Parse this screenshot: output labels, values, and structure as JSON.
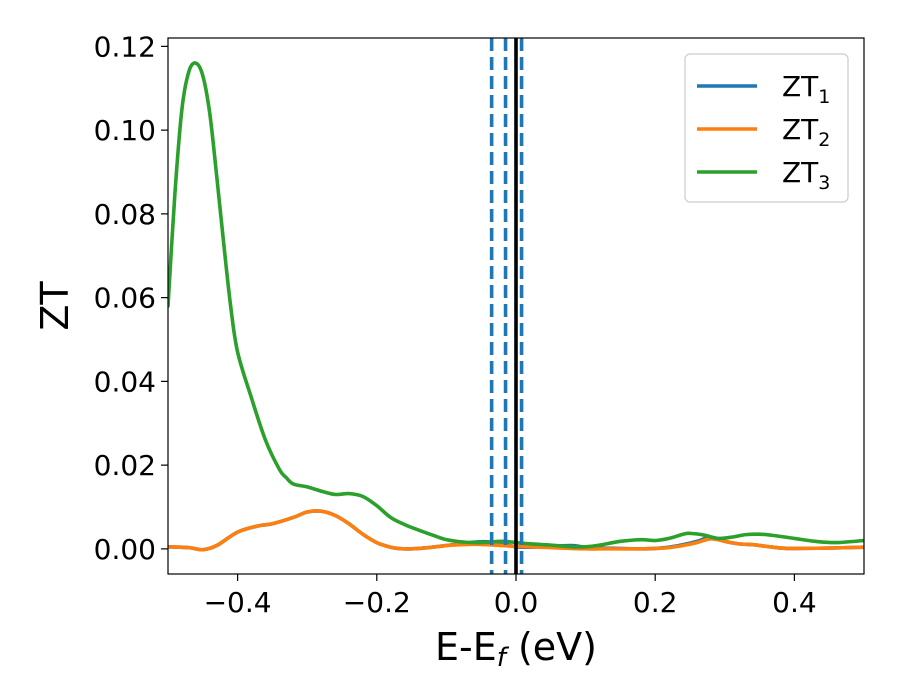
{
  "chart_data": {
    "type": "line",
    "xlabel": {
      "main": "E-E",
      "sub": "f",
      "suffix": " (eV)"
    },
    "ylabel": "ZT",
    "xlim": [
      -0.5,
      0.5
    ],
    "ylim": [
      -0.006,
      0.122
    ],
    "xticks": [
      -0.4,
      -0.2,
      0.0,
      0.2,
      0.4
    ],
    "xtick_labels": [
      "−0.4",
      "−0.2",
      "0.0",
      "0.2",
      "0.4"
    ],
    "yticks": [
      0.0,
      0.02,
      0.04,
      0.06,
      0.08,
      0.1,
      0.12
    ],
    "ytick_labels": [
      "0.00",
      "0.02",
      "0.04",
      "0.06",
      "0.08",
      "0.10",
      "0.12"
    ],
    "grid": false,
    "legend_position": "top-right",
    "reference_lines": {
      "solid_black_x": 0.0,
      "dashed_blue_x": [
        -0.035,
        -0.015,
        0.008
      ],
      "colors": {
        "solid": "#000000",
        "dashed": "#1f77b4"
      }
    },
    "series": [
      {
        "name": "ZT",
        "name_sub": "1",
        "color": "#1f77b4",
        "x": [
          -0.5,
          -0.47,
          -0.45,
          -0.43,
          -0.4,
          -0.37,
          -0.35,
          -0.32,
          -0.3,
          -0.28,
          -0.26,
          -0.24,
          -0.22,
          -0.2,
          -0.18,
          -0.16,
          -0.14,
          -0.12,
          -0.1,
          -0.08,
          -0.06,
          -0.04,
          -0.02,
          0.0,
          0.02,
          0.05,
          0.08,
          0.1,
          0.12,
          0.15,
          0.18,
          0.2,
          0.22,
          0.24,
          0.26,
          0.28,
          0.3,
          0.32,
          0.34,
          0.36,
          0.38,
          0.4,
          0.45,
          0.5
        ],
        "y": [
          0.0005,
          0.0003,
          -0.0002,
          0.0008,
          0.004,
          0.0055,
          0.006,
          0.0075,
          0.0088,
          0.009,
          0.008,
          0.006,
          0.0035,
          0.0015,
          0.0004,
          0.0,
          0.0001,
          0.0004,
          0.0008,
          0.0012,
          0.0016,
          0.0017,
          0.0012,
          0.0005,
          0.0004,
          0.0006,
          0.0008,
          0.0004,
          0.0002,
          0.0001,
          0.0,
          0.0001,
          0.0004,
          0.001,
          0.0018,
          0.0028,
          0.0018,
          0.0012,
          0.001,
          0.0006,
          0.0002,
          0.0001,
          0.0002,
          0.0004
        ]
      },
      {
        "name": "ZT",
        "name_sub": "2",
        "color": "#ff7f0e",
        "x": [
          -0.5,
          -0.47,
          -0.45,
          -0.43,
          -0.4,
          -0.37,
          -0.35,
          -0.32,
          -0.3,
          -0.28,
          -0.26,
          -0.24,
          -0.22,
          -0.2,
          -0.18,
          -0.16,
          -0.14,
          -0.12,
          -0.1,
          -0.08,
          -0.06,
          -0.04,
          -0.02,
          0.0,
          0.02,
          0.05,
          0.08,
          0.1,
          0.12,
          0.15,
          0.18,
          0.2,
          0.22,
          0.24,
          0.26,
          0.28,
          0.3,
          0.32,
          0.34,
          0.36,
          0.38,
          0.4,
          0.45,
          0.5
        ],
        "y": [
          0.0005,
          0.0003,
          -0.0002,
          0.0008,
          0.004,
          0.0055,
          0.006,
          0.0075,
          0.0088,
          0.009,
          0.008,
          0.006,
          0.0035,
          0.0015,
          0.0004,
          0.0,
          0.0001,
          0.0004,
          0.0008,
          0.001,
          0.0011,
          0.001,
          0.0008,
          0.0006,
          0.0005,
          0.0003,
          0.0001,
          0.0,
          0.0,
          0.0,
          0.0,
          0.0001,
          0.0003,
          0.0008,
          0.0015,
          0.0024,
          0.0018,
          0.0012,
          0.001,
          0.0006,
          0.0002,
          0.0001,
          0.0002,
          0.0004
        ]
      },
      {
        "name": "ZT",
        "name_sub": "3",
        "color": "#2ca02c",
        "x": [
          -0.5,
          -0.49,
          -0.48,
          -0.47,
          -0.46,
          -0.45,
          -0.44,
          -0.43,
          -0.42,
          -0.41,
          -0.4,
          -0.38,
          -0.36,
          -0.34,
          -0.33,
          -0.32,
          -0.3,
          -0.28,
          -0.26,
          -0.24,
          -0.22,
          -0.2,
          -0.18,
          -0.16,
          -0.14,
          -0.12,
          -0.1,
          -0.08,
          -0.06,
          -0.04,
          -0.02,
          0.0,
          0.02,
          0.05,
          0.08,
          0.1,
          0.12,
          0.15,
          0.18,
          0.2,
          0.22,
          0.24,
          0.25,
          0.27,
          0.29,
          0.31,
          0.33,
          0.35,
          0.37,
          0.4,
          0.43,
          0.46,
          0.5
        ],
        "y": [
          0.058,
          0.085,
          0.105,
          0.114,
          0.116,
          0.113,
          0.104,
          0.089,
          0.073,
          0.058,
          0.047,
          0.036,
          0.026,
          0.019,
          0.017,
          0.0155,
          0.0148,
          0.0138,
          0.013,
          0.0132,
          0.0125,
          0.0103,
          0.0075,
          0.0058,
          0.0045,
          0.0033,
          0.0022,
          0.0017,
          0.0015,
          0.0016,
          0.0018,
          0.0015,
          0.0012,
          0.0009,
          0.0005,
          0.0005,
          0.0009,
          0.0018,
          0.0022,
          0.002,
          0.0025,
          0.0035,
          0.0037,
          0.0033,
          0.0025,
          0.0028,
          0.0034,
          0.0035,
          0.0032,
          0.0025,
          0.0018,
          0.0015,
          0.002
        ]
      }
    ]
  }
}
